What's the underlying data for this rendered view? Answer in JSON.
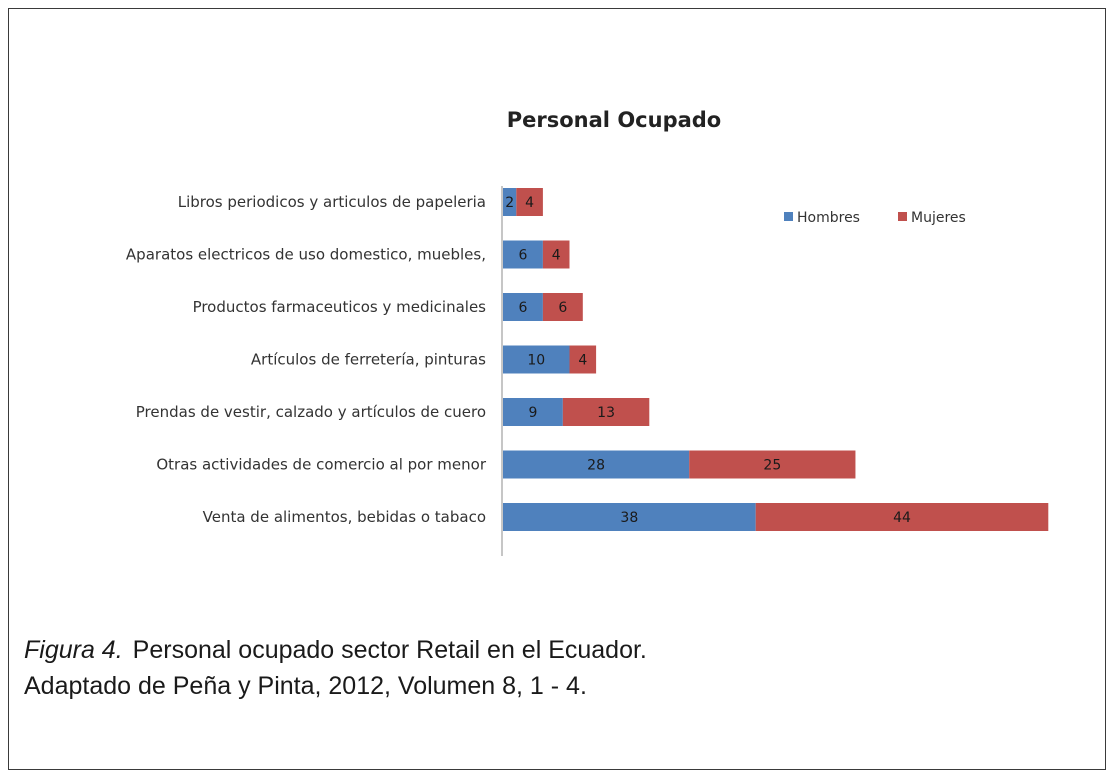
{
  "chart_data": {
    "type": "bar",
    "orientation": "horizontal",
    "stacked": true,
    "title": "Personal Ocupado",
    "categories": [
      "Libros periodicos y articulos de papeleria",
      "Aparatos electricos de uso domestico, muebles,",
      "Productos farmaceuticos y medicinales",
      "Artículos de ferretería, pinturas",
      "Prendas de vestir, calzado y artículos de cuero",
      "Otras actividades de comercio al por menor",
      "Venta de alimentos, bebidas o tabaco"
    ],
    "series": [
      {
        "name": "Hombres",
        "color": "#4f81bd",
        "values": [
          2,
          6,
          6,
          10,
          9,
          28,
          38
        ]
      },
      {
        "name": "Mujeres",
        "color": "#c0504d",
        "values": [
          4,
          4,
          6,
          4,
          13,
          25,
          44
        ]
      }
    ],
    "legend_position": "top-right",
    "grid": false,
    "xlim": [
      0,
      82
    ]
  },
  "caption": {
    "label": "Figura 4.",
    "line1": "Personal ocupado sector Retail en el Ecuador.",
    "line2": "Adaptado de Peña y Pinta, 2012, Volumen 8, 1 - 4."
  }
}
